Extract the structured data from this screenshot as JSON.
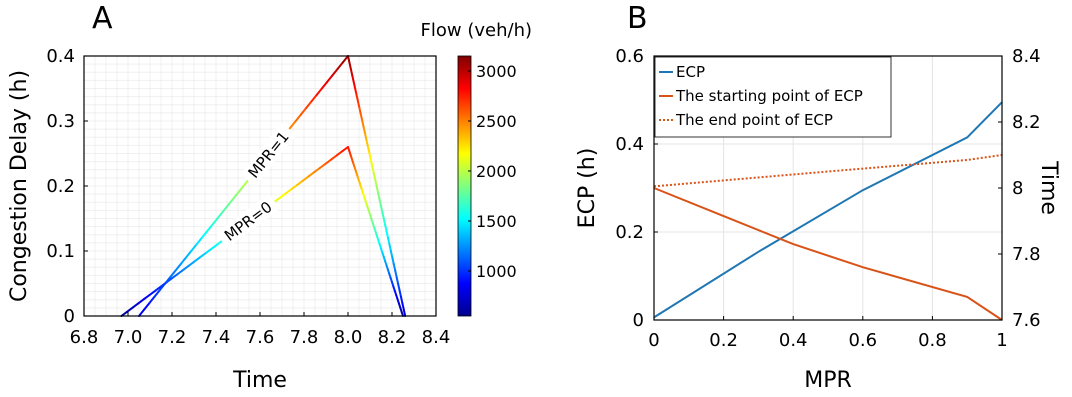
{
  "chart_data": [
    {
      "panel": "A",
      "type": "line",
      "xlabel": "Time",
      "ylabel": "Congestion Delay (h)",
      "xlim": [
        6.8,
        8.4
      ],
      "ylim": [
        0,
        0.4
      ],
      "xticks": [
        "6.8",
        "7.0",
        "7.2",
        "7.4",
        "7.6",
        "7.8",
        "8.0",
        "8.2",
        "8.4"
      ],
      "yticks": [
        "0",
        "0.1",
        "0.2",
        "0.3",
        "0.4"
      ],
      "grid": true,
      "series": [
        {
          "label": "MPR=1",
          "points": [
            [
              7.05,
              0
            ],
            [
              8.0,
              0.4
            ],
            [
              8.26,
              0
            ]
          ],
          "flow": [
            800,
            3100,
            800
          ]
        },
        {
          "label": "MPR=0",
          "points": [
            [
              6.97,
              0
            ],
            [
              8.0,
              0.26
            ],
            [
              8.25,
              0
            ]
          ],
          "flow": [
            600,
            2800,
            600
          ]
        }
      ],
      "colorbar": {
        "title": "Flow (veh/h)",
        "range": [
          550,
          3150
        ],
        "ticks": [
          "1000",
          "1500",
          "2000",
          "2500",
          "3000"
        ]
      }
    },
    {
      "panel": "B",
      "type": "line",
      "xlabel": "MPR",
      "ylabel": "ECP (h)",
      "ylabel_right": "Time",
      "xlim": [
        0,
        1
      ],
      "ylim": [
        0,
        0.6
      ],
      "ylim_right": [
        7.6,
        8.4
      ],
      "xticks": [
        "0",
        "0.2",
        "0.4",
        "0.6",
        "0.8",
        "1"
      ],
      "yticks": [
        "0",
        "0.2",
        "0.4",
        "0.6"
      ],
      "yticks_right": [
        "7.6",
        "7.8",
        "8",
        "8.2",
        "8.4"
      ],
      "grid": true,
      "legend_position": "top-left",
      "series": [
        {
          "name": "ECP",
          "axis": "left",
          "color": "#1f77b4",
          "style": "solid",
          "x": [
            0,
            0.3,
            0.6,
            0.9,
            1.0
          ],
          "y": [
            0.006,
            0.155,
            0.295,
            0.415,
            0.495
          ]
        },
        {
          "name": "The starting point of ECP",
          "axis": "right",
          "color": "#d95319",
          "style": "solid",
          "x": [
            0,
            0.2,
            0.4,
            0.6,
            0.9,
            1.0
          ],
          "y": [
            8.0,
            7.915,
            7.83,
            7.76,
            7.67,
            7.6
          ]
        },
        {
          "name": "The end point of ECP",
          "axis": "right",
          "color": "#d95319",
          "style": "dotted",
          "x": [
            0,
            0.5,
            0.9,
            1.0
          ],
          "y": [
            8.005,
            8.05,
            8.085,
            8.1
          ]
        }
      ]
    }
  ],
  "labels": {
    "panel_a": "A",
    "panel_b": "B"
  }
}
